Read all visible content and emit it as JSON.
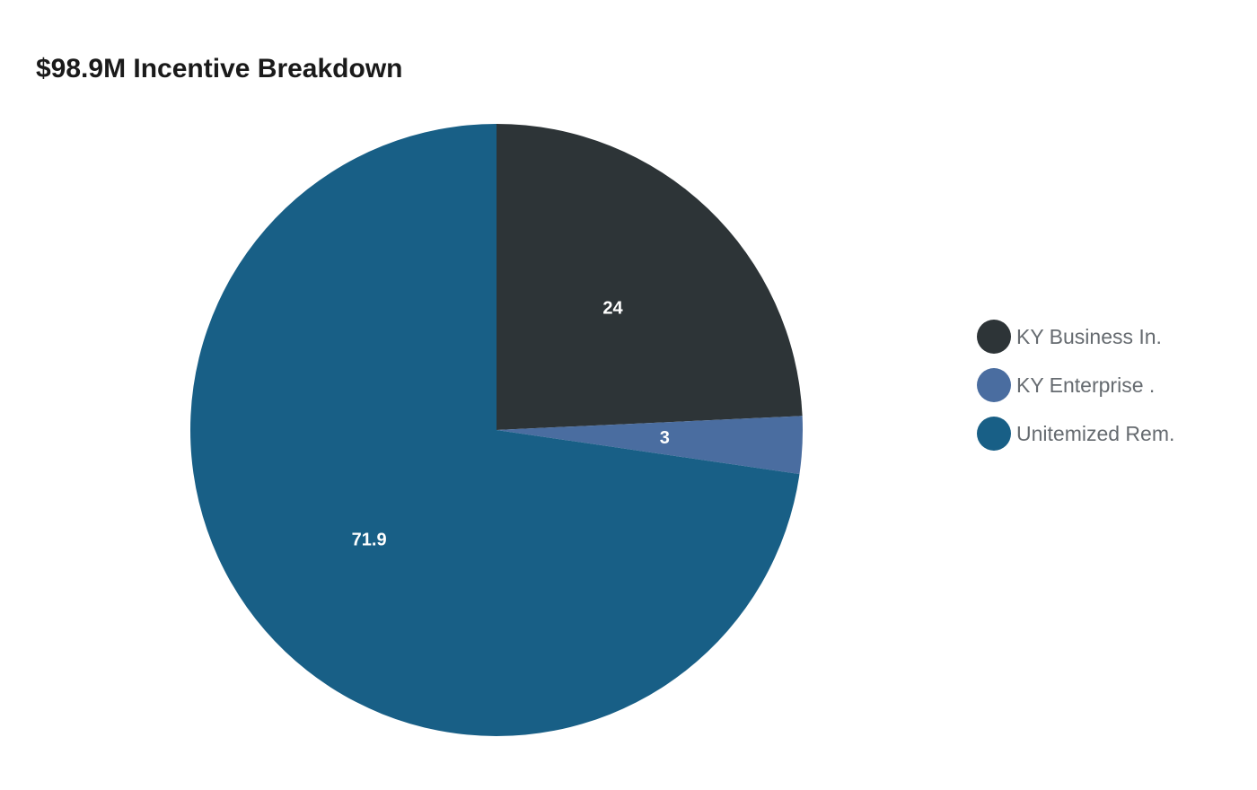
{
  "chart_data": {
    "type": "pie",
    "title": "$98.9M Incentive Breakdown",
    "series": [
      {
        "name": "KY Business In.",
        "value": 24,
        "label": "24",
        "color": "#2d3437"
      },
      {
        "name": "KY Enterprise .",
        "value": 3,
        "label": "3",
        "color": "#4a6da0"
      },
      {
        "name": "Unitemized Rem.",
        "value": 71.9,
        "label": "71.9",
        "color": "#185f86"
      }
    ],
    "legend_position": "right",
    "start_angle": "12-o-clock",
    "direction": "clockwise"
  }
}
